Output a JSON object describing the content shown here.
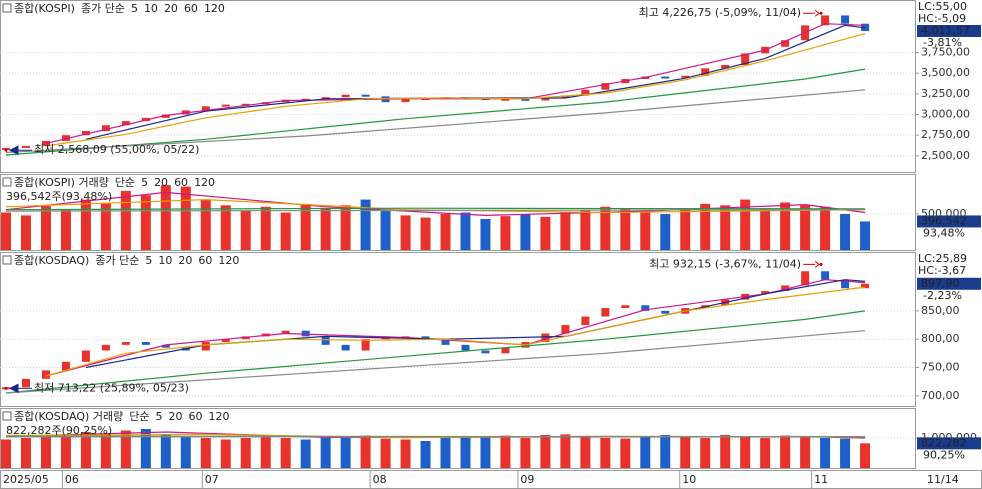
{
  "chart_data": [
    {
      "type": "candlestick",
      "title": "종합(KOSPI)",
      "ma_label": "종가 단순",
      "xlim": [
        -0.3,
        45.5
      ],
      "ylim": [
        2304,
        4387
      ],
      "yticks": [
        {
          "value": 2500,
          "label": "2,500,00"
        },
        {
          "value": 2750,
          "label": "2,750,00"
        },
        {
          "value": 3000,
          "label": "3,000,00"
        },
        {
          "value": 3250,
          "label": "3,250,00"
        },
        {
          "value": 3500,
          "label": "3,500,00"
        },
        {
          "value": 3750,
          "label": "3,750,00"
        }
      ],
      "up_color": "#e8322c",
      "down_color": "#1f5fc8",
      "values": [
        2595,
        2620,
        2680,
        2750,
        2800,
        2870,
        2920,
        2960,
        3000,
        3050,
        3100,
        3120,
        3130,
        3150,
        3180,
        3190,
        3210,
        3240,
        3220,
        3150,
        3190,
        3200,
        3210,
        3200,
        3180,
        3190,
        3170,
        3200,
        3230,
        3300,
        3380,
        3430,
        3460,
        3450,
        3470,
        3560,
        3600,
        3740,
        3820,
        3900,
        4080,
        4200,
        4100,
        4011.57
      ],
      "series": [
        {
          "name": "5",
          "color": "#d0148c",
          "x": [
            2,
            8,
            14,
            20,
            26,
            32,
            38,
            41,
            43
          ],
          "values": [
            2650,
            2990,
            3170,
            3190,
            3190,
            3450,
            3780,
            4100,
            4080
          ]
        },
        {
          "name": "10",
          "color": "#1a2a8c",
          "x": [
            4,
            10,
            16,
            22,
            28,
            34,
            38,
            42,
            43
          ],
          "values": [
            2700,
            3040,
            3190,
            3200,
            3200,
            3440,
            3680,
            4080,
            4050
          ]
        },
        {
          "name": "20",
          "color": "#e8a000",
          "x": [
            2,
            6,
            10,
            14,
            18,
            22,
            26,
            30,
            34,
            38,
            43
          ],
          "values": [
            2620,
            2760,
            2960,
            3100,
            3190,
            3200,
            3190,
            3260,
            3420,
            3650,
            3980
          ]
        },
        {
          "name": "60",
          "color": "#1e9a3a",
          "x": [
            0,
            10,
            20,
            30,
            40,
            43
          ],
          "values": [
            2510,
            2700,
            2950,
            3150,
            3430,
            3550
          ]
        },
        {
          "name": "120",
          "color": "#888888",
          "x": [
            0,
            15,
            30,
            43
          ],
          "values": [
            2540,
            2740,
            3020,
            3300
          ]
        }
      ],
      "annotations": [
        {
          "text": "최고 4,226,75 (-5,09%, 11/04)",
          "x": 40.8,
          "y": 4226.75
        },
        {
          "text": "최저 2,568,09 (55,00%, 05/22)",
          "x": 0,
          "y": 2568.09
        }
      ],
      "lc": "LC:55,00",
      "hc": "HC:-5,09",
      "last_label": "4,011,57",
      "change": "-3,81%"
    },
    {
      "type": "bar",
      "title": "종합(KOSPI) 거래량",
      "ma_label": "단순",
      "info": "396,542주(93,48%)",
      "xlim": [
        -0.3,
        45.5
      ],
      "ylim": [
        0,
        1055000
      ],
      "yticks": [
        {
          "value": 500000,
          "label": "500,000"
        }
      ],
      "values": [
        520000,
        480000,
        610000,
        560000,
        700000,
        650000,
        820000,
        760000,
        900000,
        880000,
        700000,
        620000,
        550000,
        600000,
        520000,
        640000,
        580000,
        620000,
        700000,
        560000,
        480000,
        450000,
        500000,
        520000,
        430000,
        470000,
        500000,
        460000,
        520000,
        560000,
        600000,
        580000,
        520000,
        500000,
        560000,
        640000,
        620000,
        700000,
        580000,
        660000,
        620000,
        600000,
        500000,
        396542
      ],
      "series": [
        {
          "name": "5",
          "color": "#d0148c",
          "x": [
            0,
            8,
            16,
            24,
            32,
            40,
            43
          ],
          "values": [
            560000,
            800000,
            600000,
            480000,
            540000,
            630000,
            520000
          ]
        },
        {
          "name": "20",
          "color": "#e8a000",
          "x": [
            0,
            10,
            20,
            30,
            43
          ],
          "values": [
            600000,
            700000,
            560000,
            520000,
            560000
          ]
        },
        {
          "name": "60",
          "color": "#1e9a3a",
          "x": [
            0,
            20,
            43
          ],
          "values": [
            560000,
            580000,
            570000
          ]
        },
        {
          "name": "120",
          "color": "#888888",
          "x": [
            0,
            43
          ],
          "values": [
            540000,
            560000
          ]
        }
      ],
      "last_label": "396,542",
      "change": "93,48%"
    },
    {
      "type": "candlestick",
      "title": "종합(KOSDAQ)",
      "ma_label": "종가 단순",
      "xlim": [
        -0.3,
        45.5
      ],
      "ylim": [
        682,
        954
      ],
      "yticks": [
        {
          "value": 700,
          "label": "700,00"
        },
        {
          "value": 750,
          "label": "750,00"
        },
        {
          "value": 800,
          "label": "800,00"
        },
        {
          "value": 850,
          "label": "850,00"
        }
      ],
      "up_color": "#e8322c",
      "down_color": "#1f5fc8",
      "values": [
        715,
        730,
        745,
        760,
        780,
        790,
        795,
        790,
        785,
        780,
        795,
        800,
        805,
        810,
        815,
        805,
        790,
        780,
        800,
        805,
        805,
        800,
        790,
        780,
        775,
        785,
        795,
        810,
        825,
        840,
        855,
        860,
        850,
        845,
        855,
        860,
        870,
        880,
        885,
        895,
        920,
        905,
        890,
        897.9
      ],
      "series": [
        {
          "name": "5",
          "color": "#d0148c",
          "x": [
            2,
            8,
            14,
            20,
            26,
            32,
            38,
            41,
            43
          ],
          "values": [
            735,
            790,
            810,
            803,
            790,
            852,
            880,
            905,
            900
          ]
        },
        {
          "name": "10",
          "color": "#1a2a8c",
          "x": [
            4,
            10,
            16,
            22,
            28,
            34,
            38,
            42,
            43
          ],
          "values": [
            750,
            790,
            805,
            800,
            805,
            850,
            880,
            905,
            902
          ]
        },
        {
          "name": "20",
          "color": "#e8a000",
          "x": [
            2,
            6,
            10,
            14,
            18,
            22,
            26,
            30,
            34,
            38,
            43
          ],
          "values": [
            735,
            775,
            790,
            800,
            798,
            800,
            790,
            820,
            850,
            870,
            892
          ]
        },
        {
          "name": "60",
          "color": "#1e9a3a",
          "x": [
            0,
            10,
            20,
            30,
            40,
            43
          ],
          "values": [
            705,
            740,
            770,
            800,
            835,
            850
          ]
        },
        {
          "name": "120",
          "color": "#888888",
          "x": [
            0,
            15,
            30,
            43
          ],
          "values": [
            705,
            740,
            775,
            815
          ]
        }
      ],
      "annotations": [
        {
          "text": "최고 932,15 (-3,67%, 11/04)",
          "x": 40.8,
          "y": 932.15
        },
        {
          "text": "최저 713,22 (25,89%, 05/23)",
          "x": 0,
          "y": 713.22
        }
      ],
      "lc": "LC:25,89",
      "hc": "HC:-3,67",
      "last_label": "897,90",
      "change": "-2,23%"
    },
    {
      "type": "bar",
      "title": "종합(KOSDAQ) 거래량",
      "ma_label": "단순",
      "info": "822,282주(90,25%)",
      "xlim": [
        -0.3,
        45.5
      ],
      "ylim": [
        0,
        2000000
      ],
      "yticks": [
        {
          "value": 1000000,
          "label": "1,000,000"
        }
      ],
      "values": [
        950000,
        1000000,
        1100000,
        1050000,
        1200000,
        1150000,
        1250000,
        1300000,
        1100000,
        1050000,
        1000000,
        950000,
        1000000,
        1100000,
        1000000,
        950000,
        1050000,
        1000000,
        1080000,
        980000,
        950000,
        900000,
        1000000,
        1050000,
        1020000,
        1080000,
        1000000,
        1100000,
        1120000,
        1050000,
        1000000,
        980000,
        1020000,
        1100000,
        1050000,
        1000000,
        1100000,
        1050000,
        1000000,
        1080000,
        1050000,
        1000000,
        980000,
        822282
      ],
      "series": [
        {
          "name": "5",
          "color": "#d0148c",
          "x": [
            0,
            8,
            16,
            24,
            32,
            40,
            43
          ],
          "values": [
            1050000,
            1200000,
            1020000,
            1030000,
            1040000,
            1050000,
            1000000
          ]
        },
        {
          "name": "20",
          "color": "#e8a000",
          "x": [
            0,
            10,
            20,
            30,
            43
          ],
          "values": [
            1080000,
            1120000,
            1010000,
            1060000,
            1030000
          ]
        },
        {
          "name": "60",
          "color": "#1e9a3a",
          "x": [
            0,
            20,
            43
          ],
          "values": [
            1060000,
            1050000,
            1040000
          ]
        },
        {
          "name": "120",
          "color": "#888888",
          "x": [
            0,
            43
          ],
          "values": [
            1040000,
            1045000
          ]
        }
      ],
      "last_label": "822,282",
      "change": "90,25%",
      "xticks": [
        {
          "value": -0.3,
          "label": "2025/05"
        },
        {
          "value": 2.8,
          "label": "06"
        },
        {
          "value": 9.8,
          "label": "07"
        },
        {
          "value": 18.2,
          "label": "08"
        },
        {
          "value": 25.6,
          "label": "09"
        },
        {
          "value": 33.7,
          "label": "10"
        },
        {
          "value": 40.3,
          "label": "11"
        }
      ],
      "last_date": "11/14"
    }
  ]
}
